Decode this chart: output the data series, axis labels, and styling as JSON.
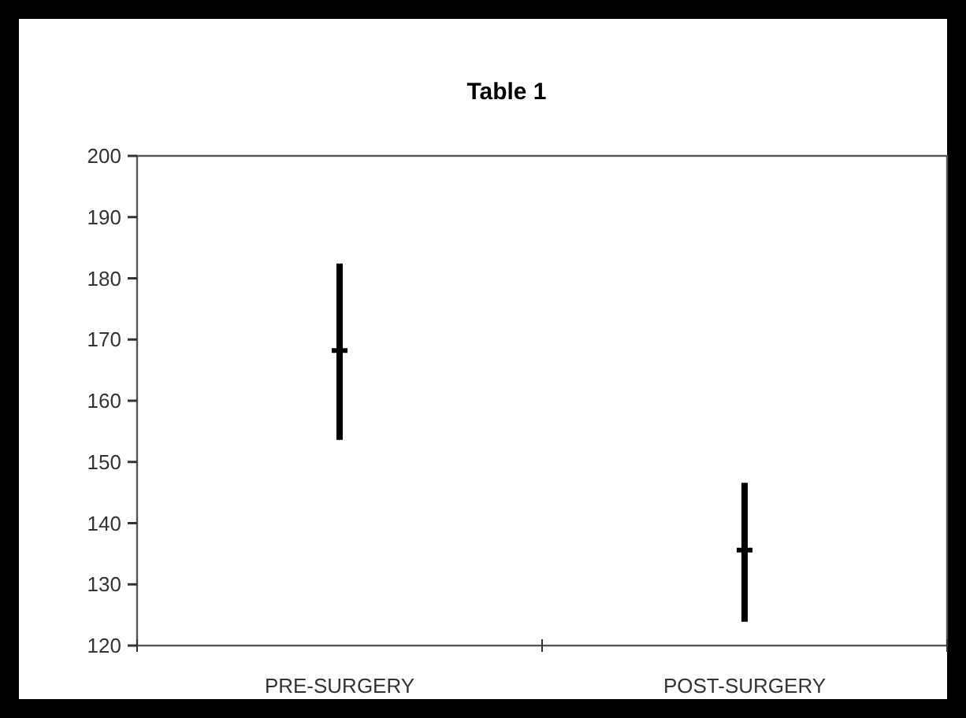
{
  "chart_data": {
    "type": "scatter",
    "title": "Table 1",
    "categories": [
      "PRE-SURGERY",
      "POST-SURGERY"
    ],
    "series": [
      {
        "color": "#000000",
        "values": [
          168.2,
          135.6
        ],
        "errors": [
          [
            153.6,
            182.4
          ],
          [
            123.9,
            146.6
          ]
        ]
      }
    ],
    "ylim": [
      120,
      200
    ],
    "yticks": [
      120,
      130,
      140,
      150,
      160,
      170,
      180,
      190,
      200
    ],
    "grid": false
  }
}
